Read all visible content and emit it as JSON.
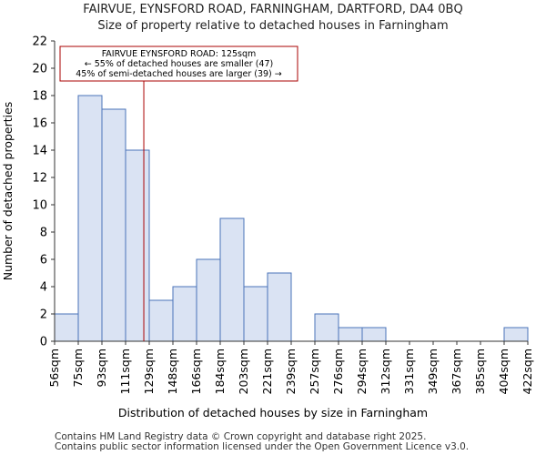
{
  "chart_data": {
    "type": "bar",
    "title": "FAIRVUE, EYNSFORD ROAD, FARNINGHAM, DARTFORD, DA4 0BQ",
    "subtitle": "Size of property relative to detached houses in Farningham",
    "xlabel": "Distribution of detached houses by size in Farningham",
    "ylabel": "Number of detached properties",
    "bin_edges": [
      56,
      75,
      93,
      111,
      129,
      148,
      166,
      184,
      203,
      221,
      239,
      257,
      276,
      294,
      312,
      331,
      349,
      367,
      385,
      404,
      422
    ],
    "tick_labels": [
      "56sqm",
      "75sqm",
      "93sqm",
      "111sqm",
      "129sqm",
      "148sqm",
      "166sqm",
      "184sqm",
      "203sqm",
      "221sqm",
      "239sqm",
      "257sqm",
      "276sqm",
      "294sqm",
      "312sqm",
      "331sqm",
      "349sqm",
      "367sqm",
      "385sqm",
      "404sqm",
      "422sqm"
    ],
    "values": [
      2,
      18,
      17,
      14,
      3,
      4,
      6,
      9,
      4,
      5,
      0,
      2,
      1,
      1,
      0,
      0,
      0,
      0,
      0,
      1
    ],
    "ylim": [
      0,
      22
    ],
    "yticks": [
      0,
      2,
      4,
      6,
      8,
      10,
      12,
      14,
      16,
      18,
      20,
      22
    ],
    "marker": {
      "value": 125,
      "color": "#aa0000",
      "label_lines": [
        "FAIRVUE EYNSFORD ROAD: 125sqm",
        "← 55% of detached houses are smaller (47)",
        "45% of semi-detached houses are larger (39) →"
      ]
    },
    "bar_fill": "#dae3f3",
    "bar_stroke": "#4a73b8"
  },
  "footer": {
    "line1": "Contains HM Land Registry data © Crown copyright and database right 2025.",
    "line2": "Contains public sector information licensed under the Open Government Licence v3.0."
  }
}
